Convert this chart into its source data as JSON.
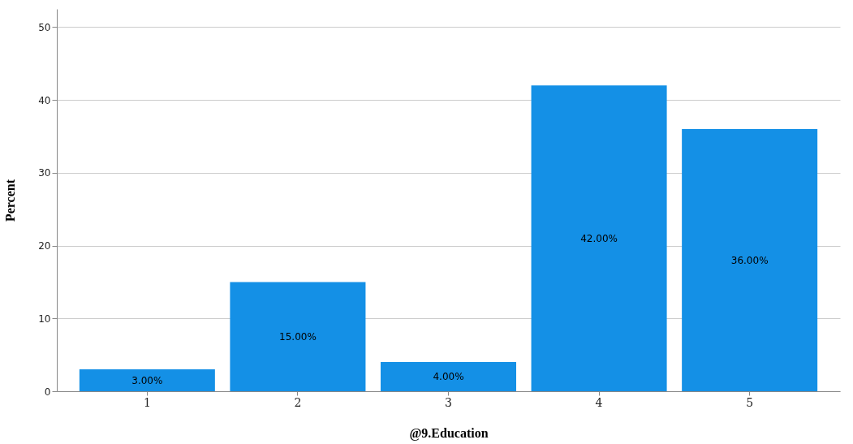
{
  "chart_data": {
    "type": "bar",
    "xlabel": "@9.Education",
    "ylabel": "Percent",
    "categories": [
      "1",
      "2",
      "3",
      "4",
      "5"
    ],
    "values": [
      3,
      15,
      4,
      42,
      36
    ],
    "value_labels": [
      "3.00%",
      "15.00%",
      "4.00%",
      "42.00%",
      "36.00%"
    ],
    "color": "#1490e6",
    "ylim": [
      0,
      52.5
    ],
    "yticks": [
      0,
      10,
      20,
      30,
      40,
      50
    ],
    "grid": "y"
  }
}
